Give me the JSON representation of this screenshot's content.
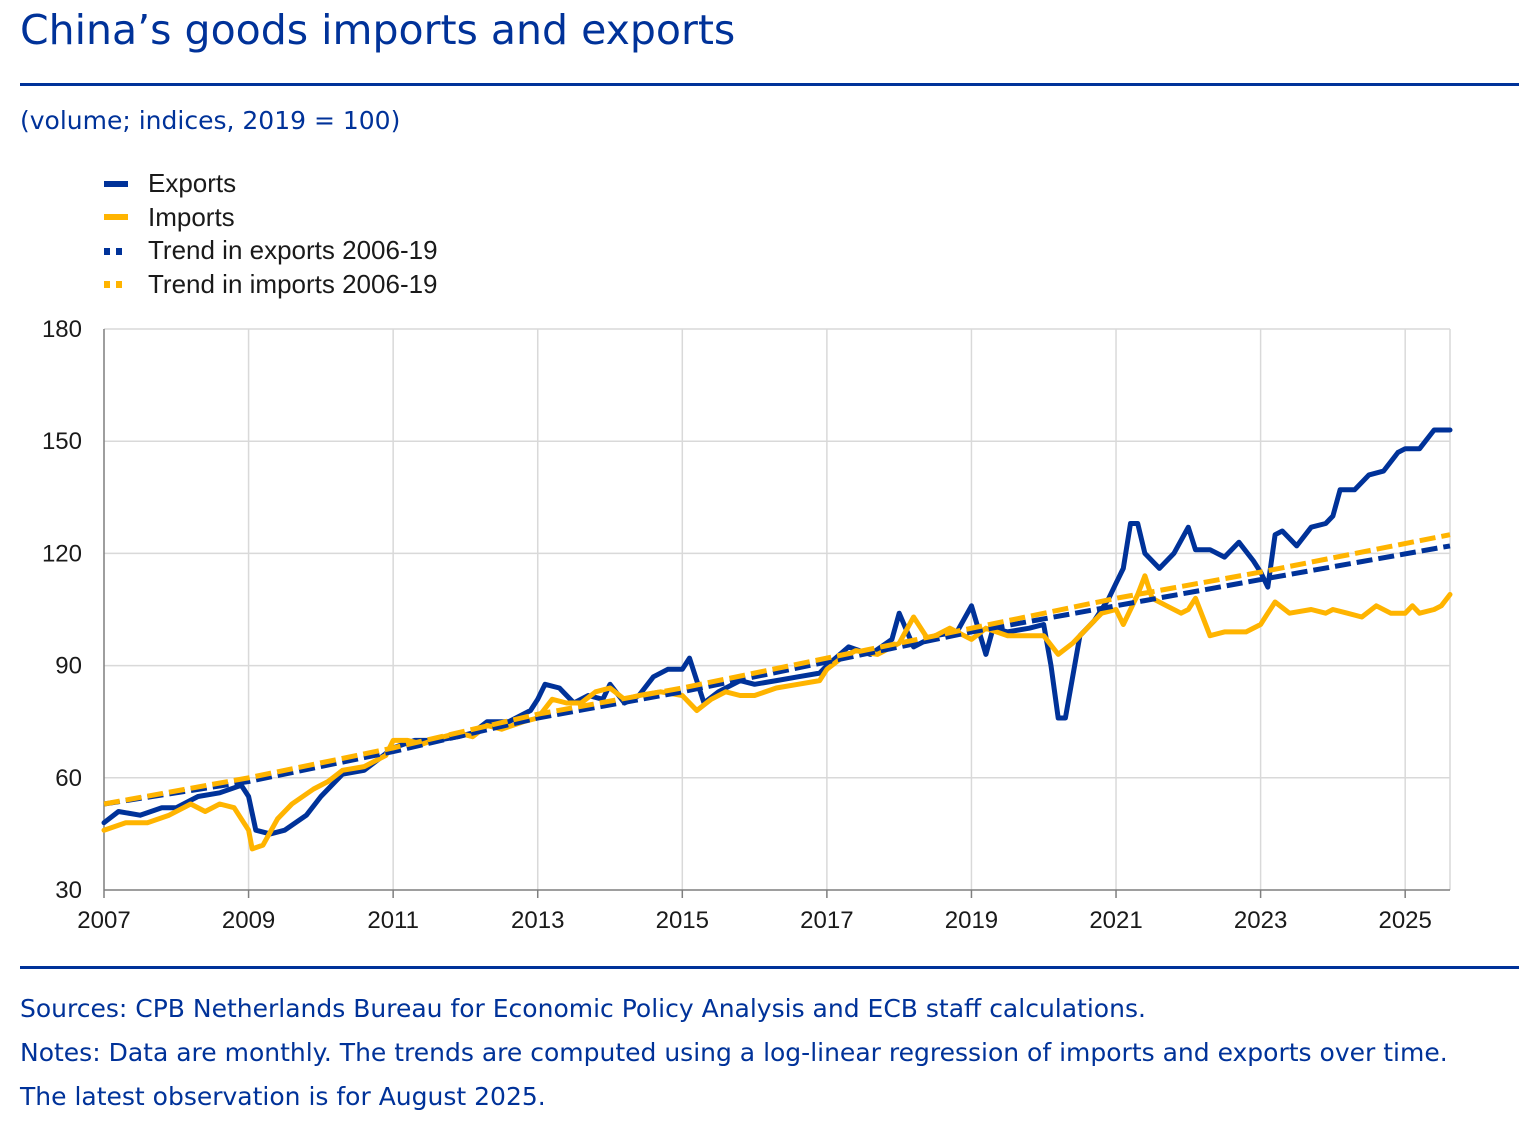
{
  "title": "China’s goods imports and exports",
  "subtitle": "(volume; indices, 2019 = 100)",
  "footer": {
    "sources": "Sources: CPB Netherlands Bureau for Economic Policy Analysis and ECB staff calculations.",
    "notes": "Notes: Data are monthly. The trends are computed using a log-linear regression of imports and exports over time.",
    "latest": "The latest observation is for August 2025."
  },
  "legend": [
    {
      "label": "Exports",
      "color": "#003299",
      "style": "solid"
    },
    {
      "label": "Imports",
      "color": "#FFB400",
      "style": "solid"
    },
    {
      "label": "Trend in exports 2006-19",
      "color": "#003299",
      "style": "dashed"
    },
    {
      "label": "Trend in imports 2006-19",
      "color": "#FFB400",
      "style": "dashed"
    }
  ],
  "chart_data": {
    "type": "line",
    "title": "China’s goods imports and exports",
    "xlabel": "",
    "ylabel": "",
    "xlim": [
      2007.0,
      2025.62
    ],
    "ylim": [
      30,
      180
    ],
    "yticks": [
      30,
      60,
      90,
      120,
      150,
      180
    ],
    "xticks": [
      "2007",
      "2009",
      "2011",
      "2013",
      "2015",
      "2017",
      "2019",
      "2021",
      "2023",
      "2025"
    ],
    "grid": true,
    "legend_position": "top-left",
    "series": [
      {
        "name": "Exports",
        "color": "#003299",
        "style": "solid",
        "points": [
          [
            2007.0,
            48
          ],
          [
            2007.2,
            51
          ],
          [
            2007.5,
            50
          ],
          [
            2007.8,
            52
          ],
          [
            2008.0,
            52
          ],
          [
            2008.3,
            55
          ],
          [
            2008.6,
            56
          ],
          [
            2008.9,
            58
          ],
          [
            2009.0,
            55
          ],
          [
            2009.1,
            46
          ],
          [
            2009.3,
            45
          ],
          [
            2009.5,
            46
          ],
          [
            2009.8,
            50
          ],
          [
            2010.0,
            55
          ],
          [
            2010.3,
            61
          ],
          [
            2010.6,
            62
          ],
          [
            2010.8,
            65
          ],
          [
            2011.0,
            68
          ],
          [
            2011.3,
            70
          ],
          [
            2011.6,
            70
          ],
          [
            2011.9,
            71
          ],
          [
            2012.1,
            72
          ],
          [
            2012.3,
            75
          ],
          [
            2012.6,
            75
          ],
          [
            2012.9,
            78
          ],
          [
            2013.0,
            81
          ],
          [
            2013.1,
            85
          ],
          [
            2013.3,
            84
          ],
          [
            2013.5,
            80
          ],
          [
            2013.7,
            82
          ],
          [
            2013.9,
            81
          ],
          [
            2014.0,
            85
          ],
          [
            2014.2,
            80
          ],
          [
            2014.4,
            82
          ],
          [
            2014.6,
            87
          ],
          [
            2014.8,
            89
          ],
          [
            2015.0,
            89
          ],
          [
            2015.1,
            92
          ],
          [
            2015.3,
            80
          ],
          [
            2015.5,
            83
          ],
          [
            2015.8,
            86
          ],
          [
            2016.0,
            85
          ],
          [
            2016.3,
            86
          ],
          [
            2016.6,
            87
          ],
          [
            2016.9,
            88
          ],
          [
            2017.0,
            90
          ],
          [
            2017.3,
            95
          ],
          [
            2017.6,
            93
          ],
          [
            2017.9,
            97
          ],
          [
            2018.0,
            104
          ],
          [
            2018.2,
            95
          ],
          [
            2018.5,
            98
          ],
          [
            2018.8,
            99
          ],
          [
            2019.0,
            106
          ],
          [
            2019.2,
            93
          ],
          [
            2019.3,
            100
          ],
          [
            2019.5,
            99
          ],
          [
            2019.8,
            100
          ],
          [
            2020.0,
            101
          ],
          [
            2020.1,
            90
          ],
          [
            2020.2,
            76
          ],
          [
            2020.3,
            76
          ],
          [
            2020.5,
            98
          ],
          [
            2020.7,
            102
          ],
          [
            2020.9,
            108
          ],
          [
            2021.0,
            112
          ],
          [
            2021.1,
            116
          ],
          [
            2021.2,
            128
          ],
          [
            2021.3,
            128
          ],
          [
            2021.4,
            120
          ],
          [
            2021.6,
            116
          ],
          [
            2021.8,
            120
          ],
          [
            2022.0,
            127
          ],
          [
            2022.1,
            121
          ],
          [
            2022.3,
            121
          ],
          [
            2022.5,
            119
          ],
          [
            2022.7,
            123
          ],
          [
            2022.9,
            118
          ],
          [
            2023.0,
            115
          ],
          [
            2023.1,
            111
          ],
          [
            2023.2,
            125
          ],
          [
            2023.3,
            126
          ],
          [
            2023.5,
            122
          ],
          [
            2023.7,
            127
          ],
          [
            2023.9,
            128
          ],
          [
            2024.0,
            130
          ],
          [
            2024.1,
            137
          ],
          [
            2024.3,
            137
          ],
          [
            2024.5,
            141
          ],
          [
            2024.7,
            142
          ],
          [
            2024.9,
            147
          ],
          [
            2025.0,
            148
          ],
          [
            2025.2,
            148
          ],
          [
            2025.4,
            153
          ],
          [
            2025.5,
            153
          ],
          [
            2025.62,
            153
          ]
        ]
      },
      {
        "name": "Imports",
        "color": "#FFB400",
        "style": "solid",
        "points": [
          [
            2007.0,
            46
          ],
          [
            2007.3,
            48
          ],
          [
            2007.6,
            48
          ],
          [
            2007.9,
            50
          ],
          [
            2008.2,
            53
          ],
          [
            2008.4,
            51
          ],
          [
            2008.6,
            53
          ],
          [
            2008.8,
            52
          ],
          [
            2009.0,
            46
          ],
          [
            2009.05,
            41
          ],
          [
            2009.2,
            42
          ],
          [
            2009.4,
            49
          ],
          [
            2009.6,
            53
          ],
          [
            2009.9,
            57
          ],
          [
            2010.1,
            59
          ],
          [
            2010.3,
            62
          ],
          [
            2010.6,
            63
          ],
          [
            2010.9,
            66
          ],
          [
            2011.0,
            70
          ],
          [
            2011.2,
            70
          ],
          [
            2011.4,
            69
          ],
          [
            2011.7,
            71
          ],
          [
            2011.9,
            72
          ],
          [
            2012.1,
            71
          ],
          [
            2012.3,
            74
          ],
          [
            2012.5,
            73
          ],
          [
            2012.8,
            75
          ],
          [
            2013.0,
            76
          ],
          [
            2013.2,
            81
          ],
          [
            2013.4,
            80
          ],
          [
            2013.6,
            80
          ],
          [
            2013.8,
            83
          ],
          [
            2014.0,
            84
          ],
          [
            2014.2,
            81
          ],
          [
            2014.4,
            82
          ],
          [
            2014.7,
            83
          ],
          [
            2015.0,
            82
          ],
          [
            2015.2,
            78
          ],
          [
            2015.4,
            81
          ],
          [
            2015.6,
            83
          ],
          [
            2015.8,
            82
          ],
          [
            2016.0,
            82
          ],
          [
            2016.3,
            84
          ],
          [
            2016.6,
            85
          ],
          [
            2016.9,
            86
          ],
          [
            2017.0,
            89
          ],
          [
            2017.2,
            92
          ],
          [
            2017.4,
            94
          ],
          [
            2017.7,
            93
          ],
          [
            2018.0,
            96
          ],
          [
            2018.2,
            103
          ],
          [
            2018.4,
            97
          ],
          [
            2018.7,
            100
          ],
          [
            2018.9,
            98
          ],
          [
            2019.0,
            97
          ],
          [
            2019.2,
            100
          ],
          [
            2019.5,
            98
          ],
          [
            2019.8,
            98
          ],
          [
            2020.0,
            98
          ],
          [
            2020.2,
            93
          ],
          [
            2020.4,
            96
          ],
          [
            2020.6,
            100
          ],
          [
            2020.8,
            104
          ],
          [
            2021.0,
            105
          ],
          [
            2021.1,
            101
          ],
          [
            2021.3,
            109
          ],
          [
            2021.4,
            114
          ],
          [
            2021.5,
            108
          ],
          [
            2021.7,
            106
          ],
          [
            2021.9,
            104
          ],
          [
            2022.0,
            105
          ],
          [
            2022.1,
            108
          ],
          [
            2022.3,
            98
          ],
          [
            2022.5,
            99
          ],
          [
            2022.8,
            99
          ],
          [
            2023.0,
            101
          ],
          [
            2023.1,
            104
          ],
          [
            2023.2,
            107
          ],
          [
            2023.4,
            104
          ],
          [
            2023.7,
            105
          ],
          [
            2023.9,
            104
          ],
          [
            2024.0,
            105
          ],
          [
            2024.2,
            104
          ],
          [
            2024.4,
            103
          ],
          [
            2024.6,
            106
          ],
          [
            2024.8,
            104
          ],
          [
            2025.0,
            104
          ],
          [
            2025.1,
            106
          ],
          [
            2025.2,
            104
          ],
          [
            2025.4,
            105
          ],
          [
            2025.5,
            106
          ],
          [
            2025.62,
            109
          ]
        ]
      },
      {
        "name": "Trend in exports 2006-19",
        "color": "#003299",
        "style": "dashed",
        "points": [
          [
            2007.0,
            53
          ],
          [
            2009.0,
            59
          ],
          [
            2011.0,
            67
          ],
          [
            2013.0,
            76
          ],
          [
            2015.0,
            83
          ],
          [
            2017.0,
            91
          ],
          [
            2019.0,
            99
          ],
          [
            2021.0,
            106
          ],
          [
            2023.0,
            113
          ],
          [
            2025.62,
            122
          ]
        ]
      },
      {
        "name": "Trend in imports 2006-19",
        "color": "#FFB400",
        "style": "dashed",
        "points": [
          [
            2007.0,
            53
          ],
          [
            2009.0,
            60
          ],
          [
            2011.0,
            68
          ],
          [
            2013.0,
            77
          ],
          [
            2015.0,
            84
          ],
          [
            2017.0,
            92
          ],
          [
            2019.0,
            100
          ],
          [
            2021.0,
            108
          ],
          [
            2023.0,
            115
          ],
          [
            2025.62,
            125
          ]
        ]
      }
    ]
  }
}
